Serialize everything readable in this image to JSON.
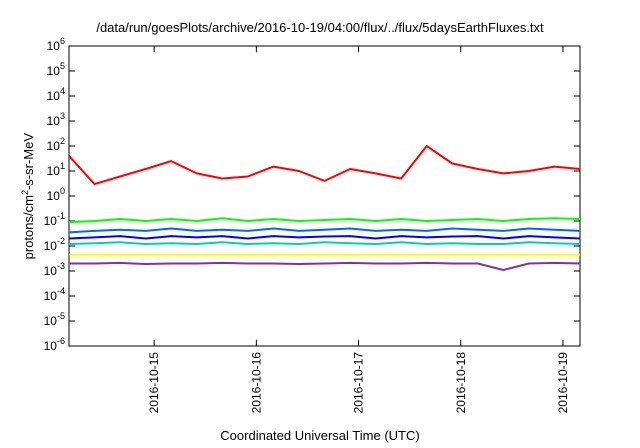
{
  "chart_data": {
    "type": "line",
    "title": "/data/run/goesPlots/archive/2016-10-19/04:00/flux/../flux/5daysEarthFluxes.txt",
    "xlabel": "Coordinated Universal Time (UTC)",
    "ylabel_base": "protons/cm",
    "ylabel_sup": "2",
    "ylabel_rest": "-s-sr-MeV",
    "ylim": [
      1e-06,
      1000000.0
    ],
    "y_scale": "log",
    "xlim": [
      "2016-10-14 04:00",
      "2016-10-19 04:00"
    ],
    "y_ticks": [
      {
        "base": "10",
        "exp": "-6",
        "value": 1e-06
      },
      {
        "base": "10",
        "exp": "-5",
        "value": 1e-05
      },
      {
        "base": "10",
        "exp": "-4",
        "value": 0.0001
      },
      {
        "base": "10",
        "exp": "-3",
        "value": 0.001
      },
      {
        "base": "10",
        "exp": "-2",
        "value": 0.01
      },
      {
        "base": "10",
        "exp": "-1",
        "value": 0.1
      },
      {
        "base": "10",
        "exp": "0",
        "value": 1
      },
      {
        "base": "10",
        "exp": "1",
        "value": 10
      },
      {
        "base": "10",
        "exp": "2",
        "value": 100
      },
      {
        "base": "10",
        "exp": "3",
        "value": 1000
      },
      {
        "base": "10",
        "exp": "4",
        "value": 10000
      },
      {
        "base": "10",
        "exp": "5",
        "value": 100000
      },
      {
        "base": "10",
        "exp": "6",
        "value": 1000000
      }
    ],
    "x_ticks": [
      "2016-10-15",
      "2016-10-16",
      "2016-10-17",
      "2016-10-18",
      "2016-10-19"
    ],
    "x": [
      "2016-10-14 04:00",
      "2016-10-14 10:00",
      "2016-10-14 16:00",
      "2016-10-14 22:00",
      "2016-10-15 04:00",
      "2016-10-15 10:00",
      "2016-10-15 16:00",
      "2016-10-15 22:00",
      "2016-10-16 04:00",
      "2016-10-16 10:00",
      "2016-10-16 16:00",
      "2016-10-16 22:00",
      "2016-10-17 04:00",
      "2016-10-17 10:00",
      "2016-10-17 16:00",
      "2016-10-17 22:00",
      "2016-10-18 04:00",
      "2016-10-18 10:00",
      "2016-10-18 16:00",
      "2016-10-18 22:00",
      "2016-10-19 04:00"
    ],
    "grid": false,
    "legend": "none",
    "series": [
      {
        "color": "#ff0000",
        "values": [
          40,
          3,
          6,
          12,
          25,
          8,
          5,
          6,
          15,
          10,
          4,
          12,
          8,
          5,
          100,
          20,
          12,
          8,
          10,
          15,
          12
        ]
      },
      {
        "color": "#00ff00",
        "values": [
          0.09,
          0.1,
          0.12,
          0.1,
          0.12,
          0.1,
          0.13,
          0.1,
          0.12,
          0.1,
          0.11,
          0.12,
          0.1,
          0.12,
          0.1,
          0.11,
          0.12,
          0.1,
          0.12,
          0.13,
          0.12
        ]
      },
      {
        "color": "#0066ff",
        "values": [
          0.035,
          0.04,
          0.045,
          0.04,
          0.05,
          0.04,
          0.045,
          0.04,
          0.05,
          0.04,
          0.045,
          0.05,
          0.04,
          0.045,
          0.04,
          0.05,
          0.045,
          0.04,
          0.05,
          0.045,
          0.04
        ]
      },
      {
        "color": "#0000ff",
        "values": [
          0.02,
          0.022,
          0.025,
          0.02,
          0.025,
          0.022,
          0.025,
          0.02,
          0.025,
          0.022,
          0.024,
          0.025,
          0.02,
          0.025,
          0.022,
          0.024,
          0.025,
          0.02,
          0.025,
          0.022,
          0.02
        ]
      },
      {
        "color": "#00cccc",
        "values": [
          0.012,
          0.013,
          0.014,
          0.012,
          0.013,
          0.012,
          0.014,
          0.012,
          0.013,
          0.012,
          0.014,
          0.013,
          0.012,
          0.014,
          0.012,
          0.013,
          0.012,
          0.012,
          0.014,
          0.013,
          0.012
        ]
      },
      {
        "color": "#ffff00",
        "values": [
          0.0045,
          0.0045,
          0.0045,
          0.0045,
          0.0045,
          0.0045,
          0.0045,
          0.0045,
          0.0045,
          0.0045,
          0.0045,
          0.0045,
          0.0045,
          0.0045,
          0.0045,
          0.0045,
          0.0045,
          0.0045,
          0.0045,
          0.0045,
          0.0045
        ]
      },
      {
        "color": "#883388",
        "values": [
          0.002,
          0.002,
          0.0021,
          0.0019,
          0.002,
          0.002,
          0.0021,
          0.002,
          0.002,
          0.0019,
          0.002,
          0.0021,
          0.002,
          0.002,
          0.0021,
          0.002,
          0.002,
          0.0011,
          0.002,
          0.0021,
          0.002
        ]
      }
    ]
  }
}
